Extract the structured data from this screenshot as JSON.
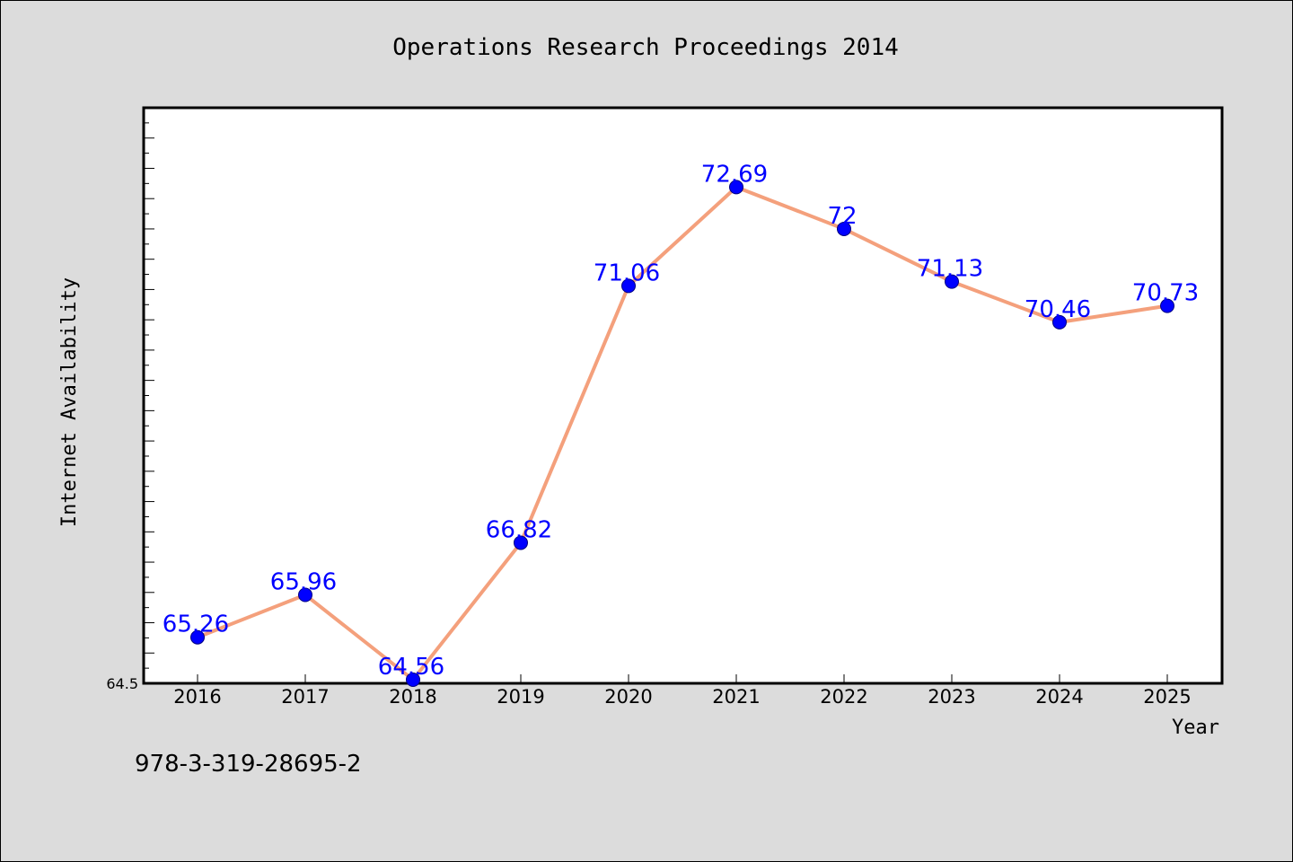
{
  "chart_data": {
    "type": "line",
    "title": "Operations Research Proceedings 2014",
    "xlabel": "Year",
    "ylabel": "Internet Availability",
    "categories": [
      "2016",
      "2017",
      "2018",
      "2019",
      "2020",
      "2021",
      "2022",
      "2023",
      "2024",
      "2025"
    ],
    "values": [
      65.26,
      65.96,
      64.56,
      66.82,
      71.06,
      72.69,
      72,
      71.13,
      70.46,
      70.73
    ],
    "data_labels": [
      "65.26",
      "65.96",
      "64.56",
      "66.82",
      "71.06",
      "72.69",
      "72",
      "71.13",
      "70.46",
      "70.73"
    ],
    "ylim": [
      64.5,
      74
    ],
    "y_tick_labels": [
      "64.5"
    ],
    "grid": false,
    "line_color": "#f4a07c",
    "marker_color": "#0000ff",
    "label_color": "#0000ff",
    "plot_background": "#ffffff",
    "figure_background": "#dcdcdc"
  },
  "footnote": "978-3-319-28695-2"
}
